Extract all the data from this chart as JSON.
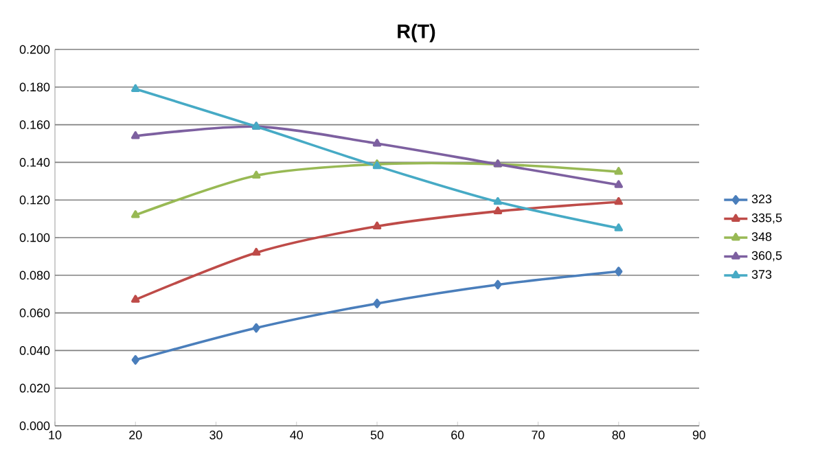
{
  "chart_data": {
    "type": "line",
    "title": "R(T)",
    "x": [
      20,
      35,
      50,
      65,
      80
    ],
    "series": [
      {
        "name": "323",
        "color": "#4a7ebb",
        "marker": "diamond",
        "values": [
          0.035,
          0.052,
          0.065,
          0.075,
          0.082
        ]
      },
      {
        "name": "335,5",
        "color": "#be4b48",
        "marker": "triangle",
        "values": [
          0.067,
          0.092,
          0.106,
          0.114,
          0.119
        ]
      },
      {
        "name": "348",
        "color": "#98b954",
        "marker": "triangle",
        "values": [
          0.112,
          0.133,
          0.139,
          0.139,
          0.135
        ]
      },
      {
        "name": "360,5",
        "color": "#7d60a0",
        "marker": "triangle",
        "values": [
          0.154,
          0.159,
          0.15,
          0.139,
          0.128
        ]
      },
      {
        "name": "373",
        "color": "#46aac5",
        "marker": "triangle",
        "values": [
          0.179,
          0.159,
          0.138,
          0.119,
          0.105
        ]
      }
    ],
    "xlim": [
      10,
      90
    ],
    "xticks": [
      10,
      20,
      30,
      40,
      50,
      60,
      70,
      80,
      90
    ],
    "ylim": [
      0,
      0.2
    ],
    "yticks": [
      {
        "value": 0,
        "label": "0.000"
      },
      {
        "value": 0.02,
        "label": "0.020"
      },
      {
        "value": 0.04,
        "label": "0.040"
      },
      {
        "value": 0.06,
        "label": "0.060"
      },
      {
        "value": 0.08,
        "label": "0.080"
      },
      {
        "value": 0.1,
        "label": "0.100"
      },
      {
        "value": 0.12,
        "label": "0.120"
      },
      {
        "value": 0.14,
        "label": "0.140"
      },
      {
        "value": 0.16,
        "label": "0.160"
      },
      {
        "value": 0.18,
        "label": "0.180"
      },
      {
        "value": 0.2,
        "label": "0.200"
      }
    ],
    "grid": "y",
    "legend": "right",
    "line_style": "solid"
  }
}
